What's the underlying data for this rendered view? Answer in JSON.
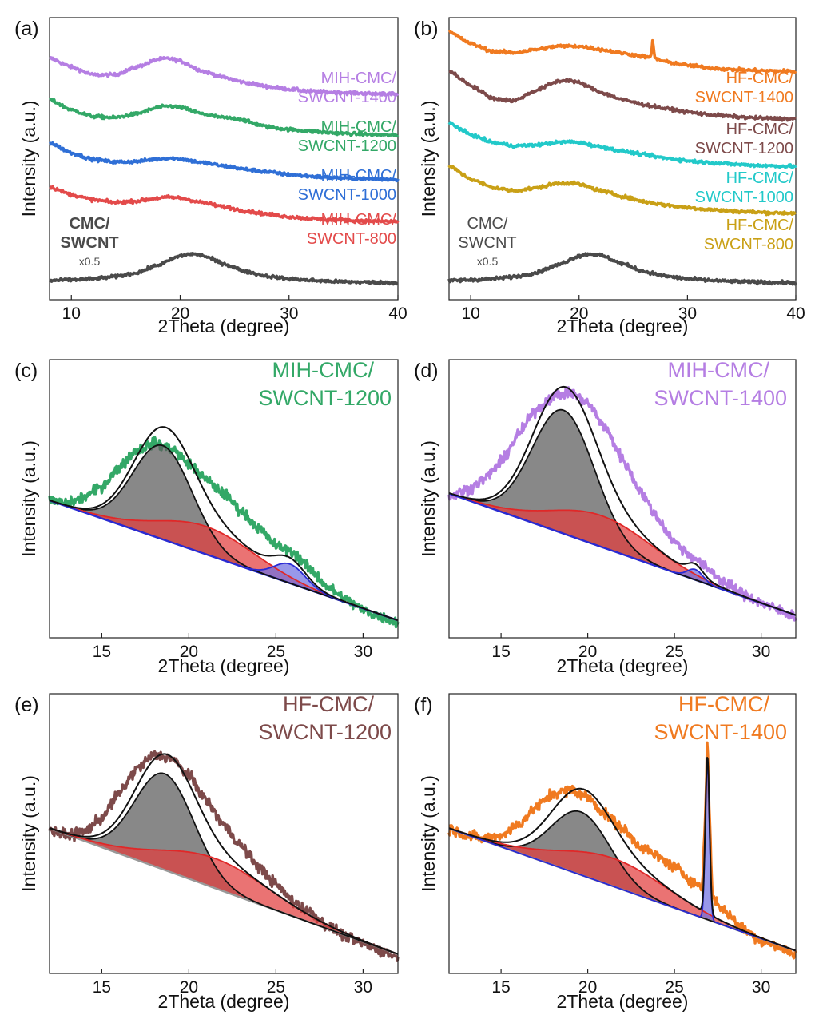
{
  "figure": {
    "colors": {
      "purple": "#b57ee3",
      "green": "#33a867",
      "blue": "#2f6fd6",
      "red": "#e34a4a",
      "dark": "#4a4a4a",
      "orange": "#f07a20",
      "brown": "#7d4a4a",
      "cyan": "#22c9c9",
      "gold": "#c9a016",
      "fitBlack": "#111111",
      "fitGray": "#8c8c8c",
      "fitRed": "#e02828",
      "fitRedFill": "#e23d3d",
      "fitBlue": "#2a2ad4",
      "baseBlue": "#1f25c8",
      "baseGray": "#999999"
    }
  },
  "chart_data": [
    {
      "id": "a",
      "panel_label": "(a)",
      "type": "line",
      "xlabel": "2Theta (degree)",
      "ylabel": "Intensity (a.u.)",
      "xlim": [
        8,
        40
      ],
      "xticks": [
        10,
        20,
        30,
        40
      ],
      "series": [
        {
          "name": "MIH-CMC/SWCNT-1400",
          "label_lines": [
            "MIH-CMC/",
            "SWCNT-1400"
          ],
          "color": "#b57ee3",
          "x": [
            8,
            10,
            12,
            14,
            16,
            18,
            19,
            20,
            22,
            24,
            26,
            28,
            30,
            32,
            34,
            36,
            38,
            40
          ],
          "y": [
            9.1,
            8.75,
            8.45,
            8.45,
            8.75,
            9.05,
            9.08,
            8.98,
            8.6,
            8.35,
            8.15,
            8.0,
            7.9,
            7.82,
            7.78,
            7.75,
            7.72,
            7.7
          ]
        },
        {
          "name": "MIH-CMC/SWCNT-1200",
          "label_lines": [
            "MIH-CMC/",
            "SWCNT-1200"
          ],
          "color": "#33a867",
          "x": [
            8,
            10,
            12,
            14,
            16,
            18,
            19,
            20,
            22,
            24,
            25.5,
            27,
            28,
            30,
            32,
            34,
            36,
            38,
            40
          ],
          "y": [
            7.5,
            7.1,
            6.85,
            6.8,
            6.95,
            7.2,
            7.25,
            7.2,
            6.95,
            6.8,
            6.75,
            6.55,
            6.45,
            6.35,
            6.28,
            6.22,
            6.18,
            6.15,
            6.12
          ]
        },
        {
          "name": "MIH-CMC/SWCNT-1000",
          "label_lines": [
            "MIH-CMC/",
            "SWCNT-1000"
          ],
          "color": "#2f6fd6",
          "x": [
            8,
            10,
            12,
            14,
            16,
            18,
            19,
            20,
            22,
            24,
            26,
            28,
            30,
            32,
            34,
            36,
            38,
            40
          ],
          "y": [
            5.85,
            5.45,
            5.2,
            5.1,
            5.12,
            5.22,
            5.25,
            5.22,
            5.08,
            4.95,
            4.82,
            4.72,
            4.62,
            4.55,
            4.5,
            4.47,
            4.45,
            4.43
          ]
        },
        {
          "name": "MIH-CMC/SWCNT-800",
          "label_lines": [
            "MIH-CMC/",
            "SWCNT-800"
          ],
          "color": "#e34a4a",
          "x": [
            8,
            10,
            12,
            14,
            16,
            18,
            19,
            20,
            22,
            24,
            26,
            28,
            30,
            32,
            34,
            36,
            38,
            40
          ],
          "y": [
            4.15,
            3.85,
            3.65,
            3.55,
            3.6,
            3.72,
            3.75,
            3.72,
            3.55,
            3.38,
            3.22,
            3.1,
            3.0,
            2.93,
            2.88,
            2.85,
            2.83,
            2.82
          ]
        },
        {
          "name": "CMC/SWCNT x0.5",
          "label_lines": [
            "CMC/",
            "SWCNT",
            "x0.5"
          ],
          "color": "#4a4a4a",
          "x": [
            8,
            10,
            12,
            14,
            16,
            18,
            20,
            21,
            22,
            24,
            26,
            28,
            30,
            32,
            34,
            36,
            38,
            40
          ],
          "y": [
            0.55,
            0.58,
            0.62,
            0.7,
            0.85,
            1.15,
            1.5,
            1.58,
            1.52,
            1.2,
            0.9,
            0.72,
            0.62,
            0.56,
            0.52,
            0.5,
            0.48,
            0.47
          ]
        }
      ]
    },
    {
      "id": "b",
      "panel_label": "(b)",
      "type": "line",
      "xlabel": "2Theta (degree)",
      "ylabel": "Intensity (a.u.)",
      "xlim": [
        8,
        40
      ],
      "xticks": [
        10,
        20,
        30,
        40
      ],
      "series": [
        {
          "name": "HF-CMC/SWCNT-1400",
          "label_lines": [
            "HF-CMC/",
            "SWCNT-1400"
          ],
          "color": "#f07a20",
          "x": [
            8,
            10,
            12,
            14,
            16,
            18,
            20,
            22,
            24,
            26,
            26.6,
            26.7,
            26.8,
            26.9,
            27.0,
            27.2,
            28,
            30,
            32,
            34,
            36,
            38,
            40
          ],
          "y": [
            10.1,
            9.65,
            9.35,
            9.3,
            9.42,
            9.55,
            9.55,
            9.42,
            9.28,
            9.15,
            9.12,
            9.35,
            9.85,
            9.35,
            9.1,
            9.05,
            8.95,
            8.82,
            8.72,
            8.65,
            8.62,
            8.6,
            8.58
          ]
        },
        {
          "name": "HF-CMC/SWCNT-1200",
          "label_lines": [
            "HF-CMC/",
            "SWCNT-1200"
          ],
          "color": "#7d4a4a",
          "x": [
            8,
            10,
            12,
            14,
            16,
            18,
            19,
            20,
            22,
            24,
            26,
            28,
            30,
            32,
            34,
            36,
            38,
            40
          ],
          "y": [
            8.6,
            8.05,
            7.55,
            7.45,
            7.85,
            8.2,
            8.25,
            8.15,
            7.78,
            7.5,
            7.3,
            7.15,
            7.02,
            6.92,
            6.85,
            6.8,
            6.77,
            6.75
          ]
        },
        {
          "name": "HF-CMC/SWCNT-1000",
          "label_lines": [
            "HF-CMC/",
            "SWCNT-1000"
          ],
          "color": "#22c9c9",
          "x": [
            8,
            10,
            12,
            14,
            16,
            18,
            19,
            20,
            22,
            24,
            26,
            28,
            30,
            32,
            34,
            36,
            38,
            40
          ],
          "y": [
            6.6,
            6.15,
            5.85,
            5.72,
            5.75,
            5.85,
            5.88,
            5.85,
            5.68,
            5.52,
            5.38,
            5.25,
            5.15,
            5.08,
            5.02,
            4.98,
            4.95,
            4.93
          ]
        },
        {
          "name": "HF-CMC/SWCNT-800",
          "label_lines": [
            "HF-CMC/",
            "SWCNT-800"
          ],
          "color": "#c9a016",
          "x": [
            8,
            10,
            12,
            14,
            16,
            18,
            19,
            20,
            22,
            24,
            26,
            28,
            30,
            32,
            34,
            36,
            38,
            40
          ],
          "y": [
            4.95,
            4.45,
            4.12,
            4.0,
            4.1,
            4.28,
            4.3,
            4.25,
            4.0,
            3.78,
            3.58,
            3.45,
            3.35,
            3.28,
            3.22,
            3.18,
            3.15,
            3.14
          ]
        },
        {
          "name": "CMC/SWCNT x0.5",
          "label_lines": [
            "CMC/",
            "SWCNT",
            "x0.5"
          ],
          "color": "#4a4a4a",
          "x": [
            8,
            10,
            12,
            14,
            16,
            18,
            20,
            21,
            22,
            24,
            26,
            28,
            30,
            32,
            34,
            36,
            38,
            40
          ],
          "y": [
            0.55,
            0.58,
            0.62,
            0.7,
            0.85,
            1.15,
            1.5,
            1.58,
            1.52,
            1.2,
            0.9,
            0.72,
            0.62,
            0.56,
            0.52,
            0.5,
            0.48,
            0.47
          ]
        }
      ]
    },
    {
      "id": "c",
      "panel_label": "(c)",
      "type": "line",
      "xlabel": "2Theta (degree)",
      "ylabel": "Intensity (a.u.)",
      "xlim": [
        12,
        32
      ],
      "xticks": [
        15,
        20,
        25,
        30
      ],
      "title_lines": [
        "MIH-CMC/",
        "SWCNT-1200"
      ],
      "title_color": "#33a867",
      "data_color": "#33a867",
      "baseline": {
        "y_start": 0.74,
        "y_end": 0.05,
        "color": "#1f25c8"
      },
      "raw": {
        "x": [
          12,
          13,
          14,
          15,
          16,
          17,
          18,
          19,
          20,
          21,
          22,
          23,
          24,
          25,
          26,
          27,
          28,
          29,
          30,
          31,
          32
        ],
        "y": [
          0.74,
          0.72,
          0.76,
          0.82,
          0.93,
          1.03,
          1.07,
          1.04,
          0.95,
          0.86,
          0.78,
          0.68,
          0.58,
          0.48,
          0.44,
          0.34,
          0.24,
          0.17,
          0.11,
          0.07,
          0.04
        ]
      },
      "fit_envelope": {
        "color": "#111111"
      },
      "components": [
        {
          "name": "peak1",
          "center": 18.5,
          "sigma": 1.7,
          "amp": 0.54,
          "color": "#111111",
          "fill": "#5a5a5a"
        },
        {
          "name": "peak2",
          "center": 21.0,
          "sigma": 2.8,
          "amp": 0.16,
          "color": "#e02828",
          "fill": "#e23d3d"
        },
        {
          "name": "peak3",
          "center": 25.8,
          "sigma": 0.9,
          "amp": 0.11,
          "color": "#2a2ad4",
          "fill": "#7070e0"
        }
      ]
    },
    {
      "id": "d",
      "panel_label": "(d)",
      "type": "line",
      "xlabel": "2Theta (degree)",
      "ylabel": "Intensity (a.u.)",
      "xlim": [
        12,
        32
      ],
      "xticks": [
        15,
        20,
        25,
        30
      ],
      "title_lines": [
        "MIH-CMC/",
        "SWCNT-1400"
      ],
      "title_color": "#b57ee3",
      "data_color": "#b57ee3",
      "baseline": {
        "y_start": 0.78,
        "y_end": 0.08,
        "color": "#1f25c8"
      },
      "raw": {
        "x": [
          12,
          13,
          14,
          15,
          16,
          17,
          18,
          19,
          20,
          21,
          22,
          23,
          24,
          25,
          26,
          27,
          28,
          29,
          30,
          31,
          32
        ],
        "y": [
          0.76,
          0.8,
          0.86,
          0.96,
          1.12,
          1.26,
          1.34,
          1.36,
          1.3,
          1.16,
          0.98,
          0.8,
          0.64,
          0.5,
          0.42,
          0.34,
          0.26,
          0.2,
          0.15,
          0.11,
          0.07
        ]
      },
      "fit_envelope": {
        "color": "#111111"
      },
      "components": [
        {
          "name": "peak1",
          "center": 18.6,
          "sigma": 1.8,
          "amp": 0.71,
          "color": "#111111",
          "fill": "#5a5a5a"
        },
        {
          "name": "peak2",
          "center": 20.8,
          "sigma": 2.9,
          "amp": 0.18,
          "color": "#e02828",
          "fill": "#e23d3d"
        },
        {
          "name": "peak3",
          "center": 26.2,
          "sigma": 0.45,
          "amp": 0.06,
          "color": "#2a2ad4",
          "fill": "#7070e0"
        }
      ]
    },
    {
      "id": "e",
      "panel_label": "(e)",
      "type": "line",
      "xlabel": "2Theta (degree)",
      "ylabel": "Intensity (a.u.)",
      "xlim": [
        12,
        32
      ],
      "xticks": [
        15,
        20,
        25,
        30
      ],
      "title_lines": [
        "HF-CMC/",
        "SWCNT-1200"
      ],
      "title_color": "#7d4a4a",
      "data_color": "#7d4a4a",
      "baseline": {
        "y_start": 0.78,
        "y_end": 0.06,
        "color": "#999999"
      },
      "raw": {
        "x": [
          12,
          13,
          14,
          15,
          16,
          17,
          18,
          19,
          20,
          21,
          22,
          23,
          24,
          25,
          26,
          27,
          28,
          29,
          30,
          31,
          32
        ],
        "y": [
          0.77,
          0.74,
          0.76,
          0.84,
          0.98,
          1.12,
          1.2,
          1.18,
          1.08,
          0.94,
          0.8,
          0.68,
          0.56,
          0.46,
          0.36,
          0.3,
          0.22,
          0.16,
          0.12,
          0.08,
          0.04
        ]
      },
      "fit_envelope": {
        "color": "#111111"
      },
      "components": [
        {
          "name": "peak1",
          "center": 18.6,
          "sigma": 1.7,
          "amp": 0.55,
          "color": "#111111",
          "fill": "#5a5a5a"
        },
        {
          "name": "peak2",
          "center": 21.5,
          "sigma": 3.2,
          "amp": 0.17,
          "color": "#e02828",
          "fill": "#e23d3d"
        }
      ]
    },
    {
      "id": "f",
      "panel_label": "(f)",
      "type": "line",
      "xlabel": "2Theta (degree)",
      "ylabel": "Intensity (a.u.)",
      "xlim": [
        12,
        32
      ],
      "xticks": [
        15,
        20,
        25,
        30
      ],
      "title_lines": [
        "HF-CMC/",
        "SWCNT-1400"
      ],
      "title_color": "#f07a20",
      "data_color": "#f07a20",
      "baseline": {
        "y_start": 0.78,
        "y_end": 0.08,
        "color": "#999999"
      },
      "raw": {
        "x": [
          12,
          13,
          14,
          15,
          16,
          17,
          18,
          19,
          20,
          21,
          22,
          23,
          24,
          25,
          26,
          26.6,
          26.8,
          26.9,
          27.0,
          27.2,
          28,
          29,
          30,
          31,
          32
        ],
        "y": [
          0.78,
          0.74,
          0.72,
          0.74,
          0.8,
          0.9,
          0.98,
          1.0,
          0.96,
          0.86,
          0.78,
          0.68,
          0.62,
          0.56,
          0.48,
          0.44,
          0.9,
          1.32,
          0.9,
          0.38,
          0.3,
          0.2,
          0.14,
          0.1,
          0.06
        ]
      },
      "fit_envelope": {
        "color": "#111111"
      },
      "components": [
        {
          "name": "peak1",
          "center": 19.6,
          "sigma": 1.7,
          "amp": 0.36,
          "color": "#111111",
          "fill": "#5a5a5a"
        },
        {
          "name": "peak2",
          "center": 21.5,
          "sigma": 3.1,
          "amp": 0.16,
          "color": "#e02828",
          "fill": "#e23d3d"
        },
        {
          "name": "peak3",
          "center": 26.9,
          "sigma": 0.12,
          "amp": 0.9,
          "color": "#2a2ad4",
          "fill": "#7070e0"
        }
      ]
    }
  ]
}
